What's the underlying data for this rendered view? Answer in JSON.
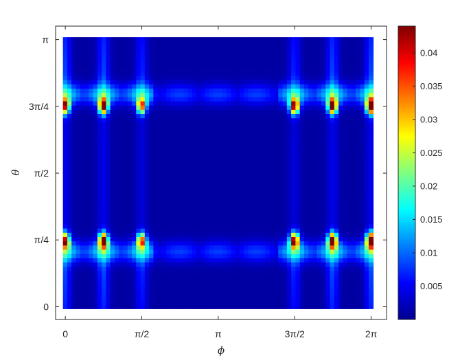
{
  "chart_data": {
    "type": "heatmap",
    "title": "",
    "xlabel": "ϕ",
    "ylabel": "θ",
    "xlim": [
      -0.2,
      6.6
    ],
    "ylim": [
      -0.15,
      3.3
    ],
    "xticks": [
      {
        "value": 0,
        "label": "0"
      },
      {
        "value": 1.5708,
        "label": "π/2"
      },
      {
        "value": 3.1416,
        "label": "π"
      },
      {
        "value": 4.7124,
        "label": "3π/2"
      },
      {
        "value": 6.2832,
        "label": "2π"
      }
    ],
    "yticks": [
      {
        "value": 0,
        "label": "0"
      },
      {
        "value": 0.7854,
        "label": "π/4"
      },
      {
        "value": 1.5708,
        "label": "π/2"
      },
      {
        "value": 2.3562,
        "label": "3π/4"
      },
      {
        "value": 3.1416,
        "label": "π"
      }
    ],
    "grid": false,
    "colormap": "jet",
    "colorbar": {
      "min": 0,
      "max": 0.044,
      "ticks": [
        {
          "value": 0.005,
          "label": "0.005"
        },
        {
          "value": 0.01,
          "label": "0.01"
        },
        {
          "value": 0.015,
          "label": "0.015"
        },
        {
          "value": 0.02,
          "label": "0.02"
        },
        {
          "value": 0.025,
          "label": "0.025"
        },
        {
          "value": 0.03,
          "label": "0.03"
        },
        {
          "value": 0.035,
          "label": "0.035"
        },
        {
          "value": 0.04,
          "label": "0.04"
        }
      ]
    },
    "grid_size": {
      "phi_cells": 72,
      "theta_cells": 64
    },
    "phi_range": [
      0,
      6.2832
    ],
    "theta_range": [
      0,
      3.1416
    ],
    "field": {
      "base": 0.0015,
      "stripes": [
        {
          "phi": 0.0,
          "width": 0.12,
          "amp": 0.009
        },
        {
          "phi": 0.7854,
          "width": 0.12,
          "amp": 0.009
        },
        {
          "phi": 1.5708,
          "width": 0.12,
          "amp": 0.007
        },
        {
          "phi": 4.7124,
          "width": 0.12,
          "amp": 0.007
        },
        {
          "phi": 5.4978,
          "width": 0.12,
          "amp": 0.009
        },
        {
          "phi": 6.2832,
          "width": 0.12,
          "amp": 0.009
        }
      ],
      "hotspots": [
        {
          "phi": 0.0,
          "theta": 0.7854,
          "amp": 0.034
        },
        {
          "phi": 0.0,
          "theta": 2.3562,
          "amp": 0.034
        },
        {
          "phi": 0.7854,
          "theta": 0.7854,
          "amp": 0.04
        },
        {
          "phi": 0.7854,
          "theta": 2.3562,
          "amp": 0.04
        },
        {
          "phi": 1.5708,
          "theta": 0.7854,
          "amp": 0.03
        },
        {
          "phi": 1.5708,
          "theta": 2.3562,
          "amp": 0.03
        },
        {
          "phi": 4.7124,
          "theta": 0.7854,
          "amp": 0.038
        },
        {
          "phi": 4.7124,
          "theta": 2.3562,
          "amp": 0.038
        },
        {
          "phi": 5.4978,
          "theta": 0.7854,
          "amp": 0.04
        },
        {
          "phi": 5.4978,
          "theta": 2.3562,
          "amp": 0.04
        },
        {
          "phi": 6.2832,
          "theta": 0.7854,
          "amp": 0.044
        },
        {
          "phi": 6.2832,
          "theta": 2.3562,
          "amp": 0.044
        }
      ],
      "bands": [
        {
          "theta": 0.65,
          "amp": 0.012
        },
        {
          "theta": 2.5,
          "amp": 0.012
        }
      ]
    }
  }
}
